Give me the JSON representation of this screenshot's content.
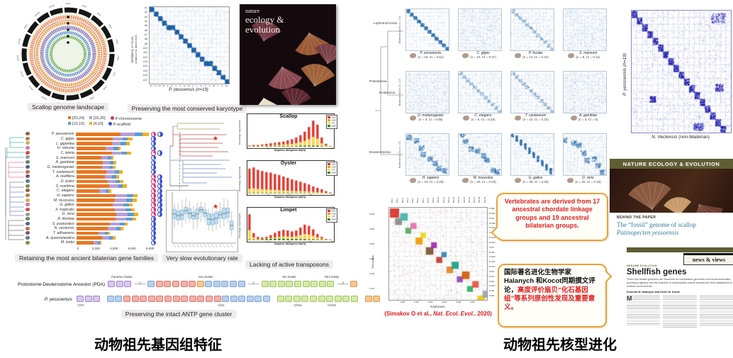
{
  "slide": {
    "left_title": "动物祖先基因组特征",
    "right_title": "动物祖先核型进化"
  },
  "left": {
    "circos": {
      "caption": "Scallop genome landscape",
      "n_chromosomes": 19,
      "chr_prefix": "Chr",
      "ring_colors": [
        "#f4926a",
        "#f5a04b",
        "#8e6bbf",
        "#5b8ed6",
        "#6aa84f"
      ]
    },
    "karyotype": {
      "caption": "Preserving the most conserved karyotype",
      "ylabel": "Urbilateria, 17 ALGs",
      "ylabel_sub": "(Simakov et al. Nature 2013)",
      "xlabel": "P. yessoensis (n=19)",
      "row_labels": [
        "A1",
        "A2",
        "A3",
        "A4",
        "A5",
        "A6",
        "A7",
        "A8",
        "A9",
        "A10",
        "A11",
        "A12",
        "A13",
        "A14",
        "A15",
        "A16",
        "A17"
      ],
      "x_ticks": [
        "14",
        "13",
        "19",
        "10",
        "9",
        "17",
        "2",
        "6",
        "12",
        "15",
        "4",
        "1",
        "11",
        "8",
        "5",
        "16",
        "7",
        "3",
        "18"
      ]
    },
    "journal_cover": {
      "line1": "nature",
      "line2": "ecology &",
      "line3": "evolution"
    },
    "gene_families": {
      "caption": "Retaining the most ancient bilaterian gene families",
      "bins_legend": [
        {
          "label": "[20,24]",
          "color": "#e87722"
        },
        {
          "label": "[15,20]",
          "color": "#b5a0d8"
        },
        {
          "label": "[10,15]",
          "color": "#5b9bd5"
        },
        {
          "label": "[4,10]",
          "color": "#f2b01e"
        }
      ],
      "pie_legend": [
        {
          "label": "P-chromosome",
          "color": "#d6336c"
        },
        {
          "label": "P-scaffold",
          "color": "#3a4fd1"
        }
      ],
      "x_ticks": [
        "0",
        "2,000",
        "4,000",
        "6,000",
        "8,000"
      ],
      "x_max": 8000,
      "species": [
        {
          "name": "P. yessoensis",
          "seg": [
            5000,
            1600,
            900,
            700
          ],
          "pk": 0.42,
          "pb": 0.55
        },
        {
          "name": "C. gigas",
          "seg": [
            4100,
            1100,
            600,
            500
          ],
          "pk": null,
          "pb": 0.5
        },
        {
          "name": "L. gigantea",
          "seg": [
            4000,
            1000,
            600,
            400
          ],
          "pk": null,
          "pb": 0.5
        },
        {
          "name": "H. robusta",
          "seg": [
            3300,
            900,
            500,
            300
          ],
          "pk": null,
          "pb": 0.45
        },
        {
          "name": "C. teleta",
          "seg": [
            4000,
            1100,
            600,
            500
          ],
          "pk": 0.3,
          "pb": 0.5
        },
        {
          "name": "S. mansoni",
          "seg": [
            2800,
            700,
            400,
            300
          ],
          "pk": null,
          "pb": 0.4
        },
        {
          "name": "A. gambiae",
          "seg": [
            3000,
            800,
            400,
            300
          ],
          "pk": null,
          "pb": 0.45
        },
        {
          "name": "D. melanogaster",
          "seg": [
            2900,
            800,
            400,
            300
          ],
          "pk": null,
          "pb": 0.5
        },
        {
          "name": "T. castaneum",
          "seg": [
            3400,
            900,
            500,
            400
          ],
          "pk": null,
          "pb": 0.5
        },
        {
          "name": "A. mellifera",
          "seg": [
            3200,
            850,
            450,
            300
          ],
          "pk": 0.35,
          "pb": 0.5
        },
        {
          "name": "D. pulex",
          "seg": [
            3500,
            900,
            500,
            400
          ],
          "pk": 0.3,
          "pb": 0.45
        },
        {
          "name": "S. maritima",
          "seg": [
            3700,
            1000,
            550,
            450
          ],
          "pk": 0.35,
          "pb": 0.5
        },
        {
          "name": "C. elegans",
          "seg": [
            2600,
            700,
            350,
            250
          ],
          "pk": 0.4,
          "pb": 0.5
        },
        {
          "name": "H. sapiens",
          "seg": [
            4400,
            1300,
            700,
            500
          ],
          "pk": 0.45,
          "pb": 0.55
        },
        {
          "name": "M. musculus",
          "seg": [
            4300,
            1300,
            700,
            500
          ],
          "pk": 0.45,
          "pb": 0.55
        },
        {
          "name": "G. gallus",
          "seg": [
            4100,
            1200,
            600,
            400
          ],
          "pk": 0.4,
          "pb": 0.5
        },
        {
          "name": "X. tropicalis",
          "seg": [
            4300,
            1250,
            650,
            400
          ],
          "pk": 0.4,
          "pb": 0.5
        },
        {
          "name": "D. rerio",
          "seg": [
            4500,
            1300,
            700,
            500
          ],
          "pk": 0.35,
          "pb": 0.55
        },
        {
          "name": "B. floridae",
          "seg": [
            4400,
            1250,
            650,
            400
          ],
          "pk": null,
          "pb": 0.5
        },
        {
          "name": "S. purpuratus",
          "seg": [
            3800,
            1100,
            550,
            350
          ],
          "pk": null,
          "pb": 0.5
        },
        {
          "name": "N. vectensis",
          "seg": [
            3500,
            1000,
            500,
            300
          ],
          "pk": null,
          "pb": 0.5
        },
        {
          "name": "T. adhaerens",
          "seg": [
            2500,
            700,
            350,
            250
          ],
          "pk": null,
          "pb": 0.45
        },
        {
          "name": "A. queenslandica",
          "seg": [
            2900,
            800,
            400,
            300
          ],
          "pk": null,
          "pb": 0.5
        },
        {
          "name": "M. leidyi",
          "seg": [
            1900,
            500,
            250,
            150
          ],
          "pk": null,
          "pb": 0.4
        }
      ]
    },
    "rate": {
      "caption": "Very slow evolutionary rate",
      "box_medians": [
        0.62,
        0.58,
        0.6,
        0.7,
        0.63,
        0.58,
        0.62,
        0.72,
        0.64,
        0.5,
        0.49,
        0.52,
        0.6,
        0.63,
        0.65,
        0.35
      ],
      "star_box_index": 11
    },
    "transposons": {
      "caption": "Lacking of active transposons",
      "xlabel": "Sequence divergence rate(%)",
      "ylabel": "Percentage of genome(%)",
      "x_axis_ticks": [
        "0",
        "10",
        "20",
        "30",
        "40"
      ],
      "legend": [
        {
          "label": "DNA",
          "color": "#e03127"
        },
        {
          "label": "LINE",
          "color": "#f59b00"
        },
        {
          "label": "LTR",
          "color": "#ffe14d"
        },
        {
          "label": "SINE",
          "color": "#2e8b2e"
        }
      ],
      "panels": [
        {
          "title": "Scallop",
          "red": [
            0.02,
            0.03,
            0.03,
            0.04,
            0.05,
            0.06,
            0.07,
            0.08,
            0.09,
            0.11,
            0.13,
            0.16,
            0.2,
            0.26,
            0.34,
            0.45,
            0.38,
            0.16,
            0.05,
            0.01
          ],
          "yellow": [
            0.01,
            0.01,
            0.01,
            0.02,
            0.02,
            0.02,
            0.03,
            0.03,
            0.04,
            0.04,
            0.05,
            0.06,
            0.08,
            0.1,
            0.13,
            0.17,
            0.14,
            0.06,
            0.02,
            0.01
          ],
          "green": [
            0.005,
            0.005,
            0.005,
            0.005,
            0.01,
            0.01,
            0.01,
            0.01,
            0.01,
            0.01,
            0.01,
            0.01,
            0.02,
            0.02,
            0.02,
            0.02,
            0.02,
            0.01,
            0.005,
            0.005
          ]
        },
        {
          "title": "Oyster",
          "red": [
            1.05,
            1.1,
            1.0,
            0.95,
            0.9,
            0.88,
            0.82,
            0.78,
            0.72,
            0.66,
            0.6,
            0.55,
            0.5,
            0.44,
            0.38,
            0.3,
            0.24,
            0.18,
            0.1,
            0.04
          ],
          "yellow": [
            0.2,
            0.22,
            0.2,
            0.18,
            0.17,
            0.16,
            0.15,
            0.14,
            0.13,
            0.12,
            0.11,
            0.1,
            0.1,
            0.09,
            0.08,
            0.07,
            0.06,
            0.05,
            0.03,
            0.01
          ],
          "green": [
            0.02,
            0.02,
            0.02,
            0.02,
            0.02,
            0.02,
            0.02,
            0.02,
            0.02,
            0.02,
            0.02,
            0.02,
            0.02,
            0.02,
            0.02,
            0.01,
            0.01,
            0.01,
            0.01,
            0.01
          ]
        },
        {
          "title": "Limpet",
          "red": [
            0.9,
            0.25,
            0.12,
            0.1,
            0.12,
            0.18,
            0.26,
            0.32,
            0.36,
            0.34,
            0.31,
            0.34,
            0.44,
            0.54,
            0.5,
            0.38,
            0.22,
            0.12,
            0.05,
            0.02
          ],
          "yellow": [
            0.35,
            0.1,
            0.05,
            0.05,
            0.06,
            0.08,
            0.1,
            0.12,
            0.14,
            0.13,
            0.12,
            0.14,
            0.18,
            0.22,
            0.2,
            0.16,
            0.1,
            0.06,
            0.03,
            0.01
          ],
          "green": [
            0.02,
            0.02,
            0.02,
            0.03,
            0.04,
            0.05,
            0.06,
            0.06,
            0.06,
            0.05,
            0.05,
            0.05,
            0.04,
            0.04,
            0.03,
            0.03,
            0.02,
            0.02,
            0.01,
            0.01
          ]
        }
      ]
    },
    "antp": {
      "caption": "Preserving the intact ANTP gene cluster",
      "row1_label": "Protostome-Deuterostome Ancestor (PDA)",
      "row2_label": "P. yessoensis",
      "cluster_labels": [
        "ParaHox cluster",
        "Hox cluster",
        "NK cluster",
        "NK2 family"
      ],
      "chr_labels": [
        "Chr7",
        "Chr1",
        "Chr11",
        "Chr15"
      ],
      "row1_groups": [
        {
          "n": 3,
          "c": "purple"
        },
        {
          "sep": "//"
        },
        {
          "n": 1,
          "c": "blue"
        },
        {
          "n": 5,
          "c": "red"
        },
        {
          "n": 1,
          "c": "orange"
        },
        {
          "n": 5,
          "c": "blue"
        },
        {
          "sep": "//"
        },
        {
          "n": 9,
          "c": "green"
        },
        {
          "sep": "//"
        },
        {
          "n": 1,
          "c": "orange"
        }
      ],
      "row2_groups": [
        {
          "n": 3,
          "c": "purple"
        },
        {
          "gap": 8
        },
        {
          "n": 2,
          "c": "blue"
        },
        {
          "n": 12,
          "c": "red"
        },
        {
          "n": 6,
          "c": "blue"
        },
        {
          "gap": 8
        },
        {
          "n": 10,
          "c": "green"
        },
        {
          "gap": 8
        },
        {
          "n": 2,
          "c": "orange"
        }
      ]
    }
  },
  "right": {
    "clade_labels": [
      "Lophotrochozoa",
      "Protostomia",
      "Ecdysozoa",
      "Deuterostomia"
    ],
    "grid_ylabel": "Bilaterian ALGs (n = 17)",
    "plots": [
      {
        "species": "P. yessoensis",
        "stats": "(n = 19, CI = 0.81)",
        "pattern": "strong",
        "icon": "scallop"
      },
      {
        "species": "C. gigas",
        "stats": "(n = 10, CI = 0.27)",
        "pattern": "weak",
        "icon": "oyster"
      },
      {
        "species": "P. fucata",
        "stats": "(n = 14, CI = 0.42)",
        "pattern": "medium",
        "icon": "pearl-oyster"
      },
      {
        "species": "S. mansoni",
        "stats": "(n = 8, CI = 0.12)",
        "pattern": "weak",
        "icon": "fluke"
      },
      {
        "species": "D. melanogaster",
        "stats": "(n = 4, CI = 0.06)",
        "pattern": "weak",
        "icon": "fly"
      },
      {
        "species": "C. elegans",
        "stats": "(n = 6, CI = 0.23)",
        "pattern": "medium",
        "icon": "worm"
      },
      {
        "species": "T. castaneum",
        "stats": "(n = 10, CI = 0.22)",
        "pattern": "medium",
        "icon": "beetle"
      },
      {
        "species": "A. gambiae",
        "stats": "(n = 3, CI = 0)",
        "pattern": "weak",
        "icon": "mosquito"
      },
      {
        "species": "H. sapiens",
        "stats": "(n = 23, CI = 0.28)",
        "pattern": "blocky",
        "icon": "human"
      },
      {
        "species": "M. musculus",
        "stats": "(n = 20, CI = 0.23)",
        "pattern": "blocky",
        "icon": "mouse"
      },
      {
        "species": "G. gallus",
        "stats": "(n = 39, CI = 0.36)",
        "pattern": "step",
        "icon": "chicken"
      },
      {
        "species": "D. rerio",
        "stats": "(n = 25, CI = 0.18)",
        "pattern": "blocky",
        "icon": "fish"
      }
    ],
    "big_plot": {
      "ylabel": "P. yessoensis (n=19)",
      "xlabel_italic": "N. Vectensis",
      "xlabel_rest": " (non-bilaterian)"
    },
    "banner": "NATURE ECOLOGY & EVOLUTION",
    "behind": {
      "kicker": "BEHIND THE PAPER",
      "title_line1": "The “fossil” genome of scallop",
      "title_line2": "Patinopecten yessoensis"
    },
    "news": {
      "tab": "news & views",
      "section": "GENOME EVOLUTION",
      "title": "Shellfish genes",
      "subtitle": "Three new bivalve genomes are resources for comparative genomics over broad timescales, providing a glimpse into the evolution of understudied marine animals and their adaptations to extreme environments.",
      "authors": "Kenneth M. Halanych and Kevin M. Kocot",
      "dropcap": "M"
    },
    "oxford": {
      "xlabel": "Amphioxus",
      "ylabel": "Sea scallop",
      "x_ticks": [
        "1,000",
        "2,000",
        "3,000",
        "4,000",
        "5,000",
        "6,000"
      ],
      "y_ticks": [
        "6,000",
        "5,000",
        "4,000",
        "3,000",
        "2,000",
        "1,000"
      ],
      "col_labels": [
        "BFL1",
        "BFL2",
        "BFL3",
        "BFL4",
        "BFL5",
        "BFL6",
        "BFL7",
        "BFL8",
        "BFL9",
        "BFL10",
        "BFL11",
        "BFL12",
        "BFL13",
        "BFL14",
        "BFL15",
        "BFL16",
        "BFL17",
        "BFL18",
        "BFL19"
      ],
      "row_labels": [
        "PYE8",
        "PYE16",
        "PYE5",
        "PYE18",
        "PYE19",
        "PYE10",
        "PYE15",
        "PYE13",
        "PYE7",
        "PYE6",
        "PYE12",
        "PYE11",
        "PYE14",
        "PYE3",
        "PYE1",
        "PYE2",
        "PYE17",
        "PYE4",
        "PYE9"
      ],
      "block_colors": [
        "#d93025",
        "#888888",
        "#3cb4a4",
        "#58a55c",
        "#e86aa6",
        "#f29900",
        "#f2d600",
        "#7a5230",
        "#9c27b0",
        "#c0392b",
        "#2980b9",
        "#e67e22",
        "#16a085",
        "#8e44ad",
        "#d35400",
        "#27ae60",
        "#e74c3c",
        "#f1c40f",
        "#95a5a6"
      ]
    },
    "cit_pre": "(Simakov O et al., ",
    "cit_italic": "Nat. Ecol. Evol.",
    "cit_post": ", 2020)",
    "bubble1": "Vertebrates are derived from 17 ancestral chordate linkage groups and 19 ancestral bilaterian groups.",
    "bubble2_black": "国际著名进化生物学家Halanych 和Kocot同期撰文评论，",
    "bubble2_red": "高度评价扇贝“化石基因组”等系列原创性发现及重要意义。"
  }
}
